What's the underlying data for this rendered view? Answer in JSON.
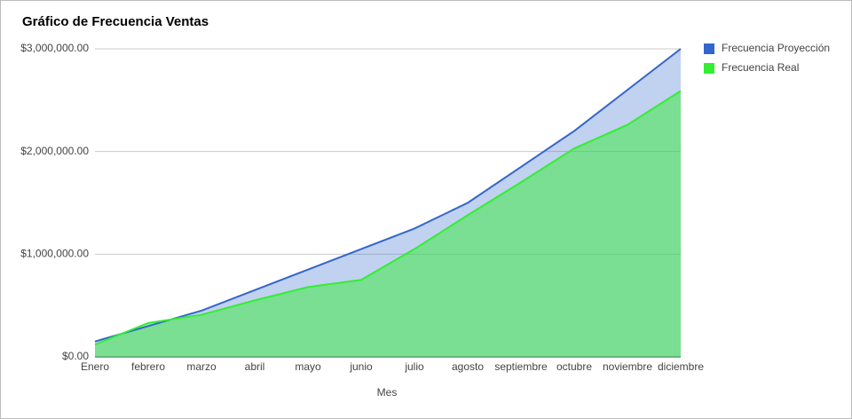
{
  "chart_data": {
    "type": "area",
    "title": "Gráfico de Frecuencia Ventas",
    "x_label": "Mes",
    "categories": [
      "Enero",
      "febrero",
      "marzo",
      "abril",
      "mayo",
      "junio",
      "julio",
      "agosto",
      "septiembre",
      "octubre",
      "noviembre",
      "diciembre"
    ],
    "series": [
      {
        "name": "Frecuencia Proyección",
        "color": "#3366cc",
        "values": [
          150000,
          300000,
          450000,
          650000,
          850000,
          1050000,
          1250000,
          1500000,
          1850000,
          2200000,
          2600000,
          3000000
        ]
      },
      {
        "name": "Frecuencia Real",
        "color": "#33ee33",
        "values": [
          120000,
          330000,
          410000,
          550000,
          680000,
          750000,
          1050000,
          1380000,
          1700000,
          2030000,
          2260000,
          2590000
        ]
      }
    ],
    "ylim": [
      0,
      3000000
    ],
    "yticks": [
      {
        "value": 0,
        "label": "$0.00"
      },
      {
        "value": 1000000,
        "label": "$1,000,000.00"
      },
      {
        "value": 2000000,
        "label": "$2,000,000.00"
      },
      {
        "value": 3000000,
        "label": "$3,000,000.00"
      }
    ],
    "grid": true,
    "legend": "right"
  }
}
